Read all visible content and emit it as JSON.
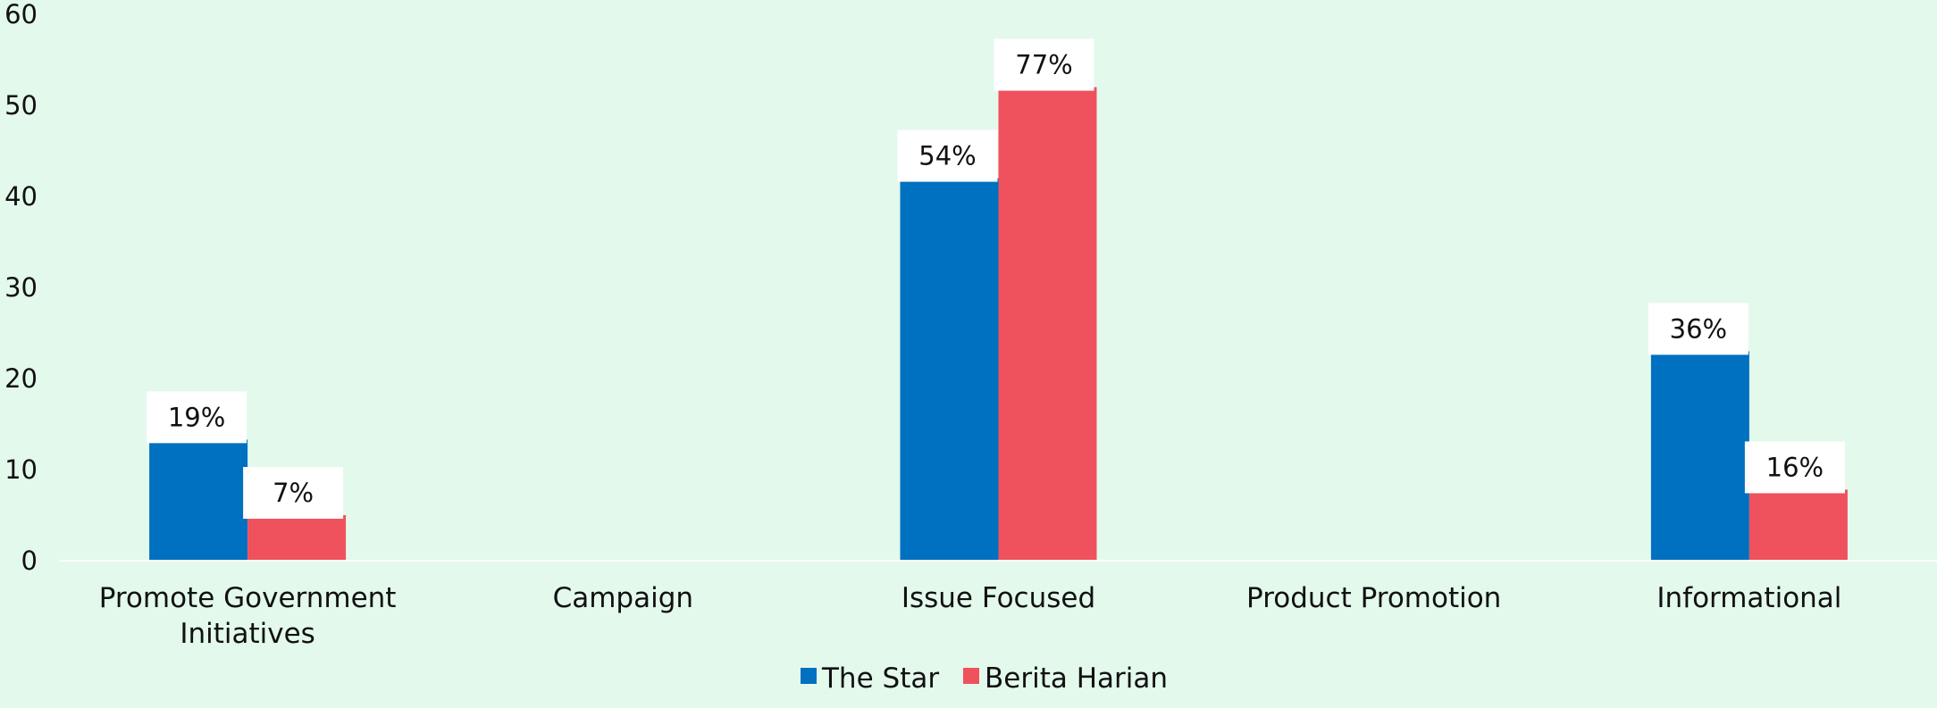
{
  "chart_data": {
    "type": "bar",
    "categories": [
      [
        "Promote Government",
        "Initiatives"
      ],
      [
        "Campaign"
      ],
      [
        "Issue Focused"
      ],
      [
        "Product Promotion"
      ],
      [
        "Informational"
      ]
    ],
    "series": [
      {
        "name": "The Star",
        "color": "#0070c0",
        "values": [
          13.3,
          null,
          42,
          null,
          23
        ],
        "labels": [
          "19%",
          null,
          "54%",
          null,
          "36%"
        ]
      },
      {
        "name": "Berita Harian",
        "color": "#ef525d",
        "values": [
          5,
          null,
          52,
          null,
          7.8
        ],
        "labels": [
          "7%",
          null,
          "77%",
          null,
          "16%"
        ]
      }
    ],
    "y_ticks": [
      0,
      10,
      20,
      30,
      40,
      50,
      60
    ],
    "ylim": [
      0,
      60
    ],
    "grid": false,
    "legend_position": "bottom-center",
    "title": "",
    "xlabel": "",
    "ylabel": ""
  }
}
